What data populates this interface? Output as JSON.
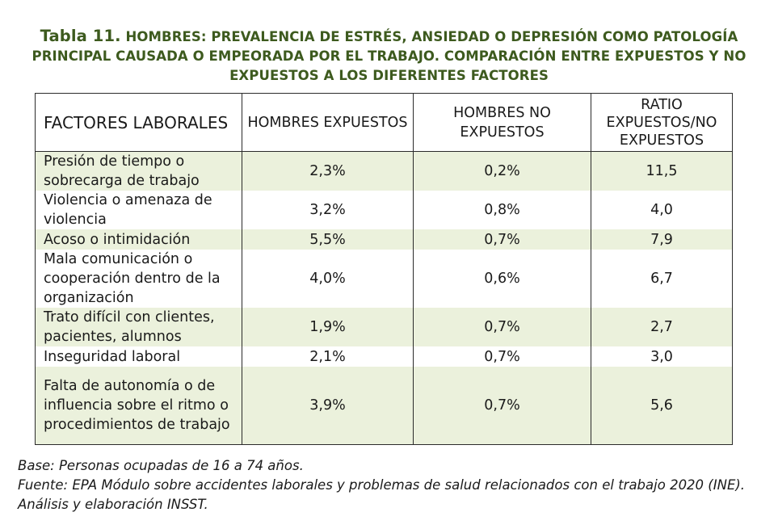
{
  "title": {
    "lead": "Tabla 11.",
    "text": "HOMBRES: PREVALENCIA DE ESTRÉS, ANSIEDAD O DEPRESIÓN COMO PATOLOGÍA PRINCIPAL CAUSADA O EMPEORADA POR EL TRABAJO. COMPARACIÓN ENTRE EXPUESTOS Y NO EXPUESTOS A LOS DIFERENTES FACTORES"
  },
  "table": {
    "headers": [
      "FACTORES LABORALES",
      "HOMBRES EXPUESTOS",
      "HOMBRES NO EXPUESTOS",
      "RATIO EXPUESTOS/NO EXPUESTOS"
    ],
    "rows": [
      {
        "factor": "Presión de tiempo o sobrecarga de trabajo",
        "expuestos": "2,3%",
        "no_expuestos": "0,2%",
        "ratio": "11,5"
      },
      {
        "factor": "Violencia o amenaza de violencia",
        "expuestos": "3,2%",
        "no_expuestos": "0,8%",
        "ratio": "4,0"
      },
      {
        "factor": "Acoso o intimidación",
        "expuestos": "5,5%",
        "no_expuestos": "0,7%",
        "ratio": "7,9"
      },
      {
        "factor": "Mala comunicación o cooperación dentro de la organización",
        "expuestos": "4,0%",
        "no_expuestos": "0,6%",
        "ratio": "6,7"
      },
      {
        "factor": "Trato difícil con clientes, pacientes, alumnos",
        "expuestos": "1,9%",
        "no_expuestos": "0,7%",
        "ratio": "2,7"
      },
      {
        "factor": "Inseguridad laboral",
        "expuestos": "2,1%",
        "no_expuestos": "0,7%",
        "ratio": "3,0"
      },
      {
        "factor": "Falta de autonomía o de influencia sobre el ritmo o procedimientos de trabajo",
        "expuestos": "3,9%",
        "no_expuestos": "0,7%",
        "ratio": "5,6"
      }
    ]
  },
  "notes": {
    "base": "Base: Personas ocupadas de 16 a 74 años.",
    "source": "Fuente: EPA Módulo sobre accidentes laborales y problemas de salud relacionados con el trabajo 2020 (INE). Análisis y elaboración INSST."
  },
  "colors": {
    "title": "#3d5a1e",
    "row_shade": "#ebf1dc",
    "border": "#2b2b2b"
  }
}
